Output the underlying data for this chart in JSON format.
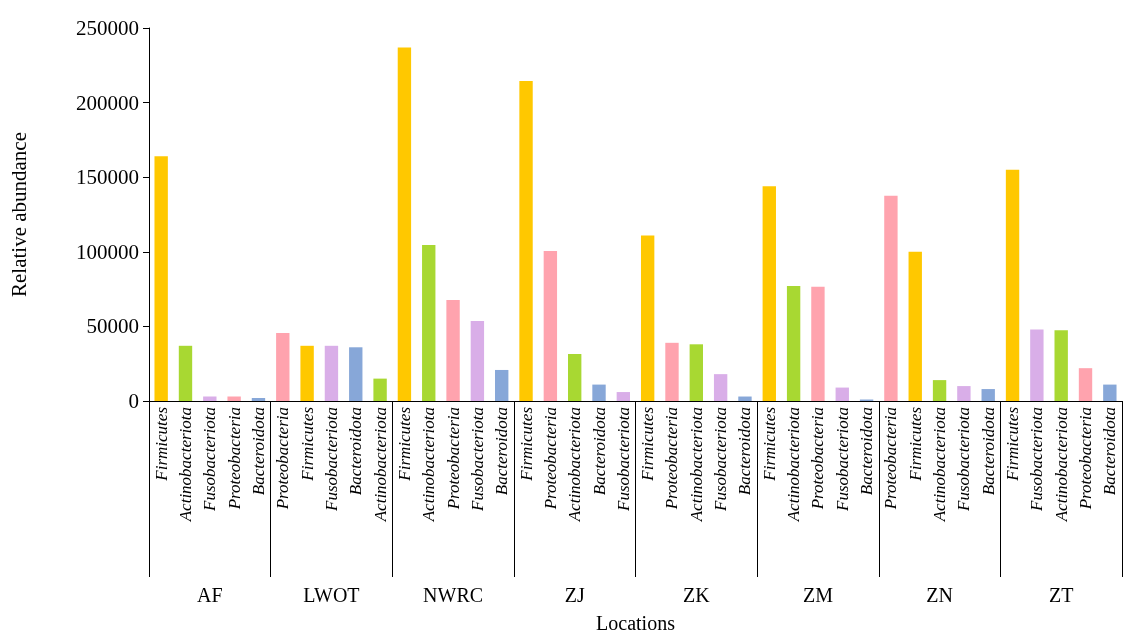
{
  "chart_data": {
    "type": "bar",
    "xlabel": "Locations",
    "ylabel": "Relative abundance",
    "categories": [
      "Firmicutes",
      "Actinobacteriota",
      "Fusobacteriota",
      "Proteobacteria",
      "Bacteroidota",
      "Proteobacteria",
      "Firmicutes",
      "Fusobacteriota",
      "Bacteroidota",
      "Actinobacteriota",
      "Firmicutes",
      "Actinobacteriota",
      "Proteobacteria",
      "Fusobacteriota",
      "Bacteroidota",
      "Firmicutes",
      "Proteobacteria",
      "Actinobacteriota",
      "Bacteroidota",
      "Fusobacteriota",
      "Firmicutes",
      "Proteobacteria",
      "Actinobacteriota",
      "Fusobacteriota",
      "Bacteroidota",
      "Firmicutes",
      "Actinobacteriota",
      "Proteobacteria",
      "Fusobacteriota",
      "Bacteroidota",
      "Proteobacteria",
      "Firmicutes",
      "Actinobacteriota",
      "Fusobacteriota",
      "Bacteroidota",
      "Firmicutes",
      "Fusobacteriota",
      "Actinobacteriota",
      "Proteobacteria",
      "Bacteroidota"
    ],
    "values": [
      164000,
      37000,
      3000,
      3000,
      2000,
      45500,
      37000,
      37000,
      36000,
      15000,
      237000,
      104500,
      67700,
      53600,
      20800,
      214500,
      100500,
      31500,
      11000,
      6000,
      111000,
      39000,
      38000,
      18000,
      3000,
      144000,
      77000,
      76500,
      9000,
      1000,
      137500,
      100000,
      14000,
      10000,
      8000,
      155000,
      48000,
      47500,
      22000,
      11000
    ],
    "colors": [
      "#ffc800",
      "#a8d832",
      "#d9aee8",
      "#ffa3ae",
      "#87a7d8",
      "#ffa3ae",
      "#ffc800",
      "#d9aee8",
      "#87a7d8",
      "#a8d832",
      "#ffc800",
      "#a8d832",
      "#ffa3ae",
      "#d9aee8",
      "#87a7d8",
      "#ffc800",
      "#ffa3ae",
      "#a8d832",
      "#87a7d8",
      "#d9aee8",
      "#ffc800",
      "#ffa3ae",
      "#a8d832",
      "#d9aee8",
      "#87a7d8",
      "#ffc800",
      "#a8d832",
      "#ffa3ae",
      "#d9aee8",
      "#87a7d8",
      "#ffa3ae",
      "#ffc800",
      "#a8d832",
      "#d9aee8",
      "#87a7d8",
      "#ffc800",
      "#d9aee8",
      "#a8d832",
      "#ffa3ae",
      "#87a7d8"
    ],
    "ylim": [
      0,
      250000
    ],
    "yticks": [
      0,
      50000,
      100000,
      150000,
      200000,
      250000
    ],
    "annotations": [
      "AF",
      "LWOT",
      "NWRC",
      "ZJ",
      "ZK",
      "ZM",
      "ZN",
      "ZT"
    ]
  }
}
